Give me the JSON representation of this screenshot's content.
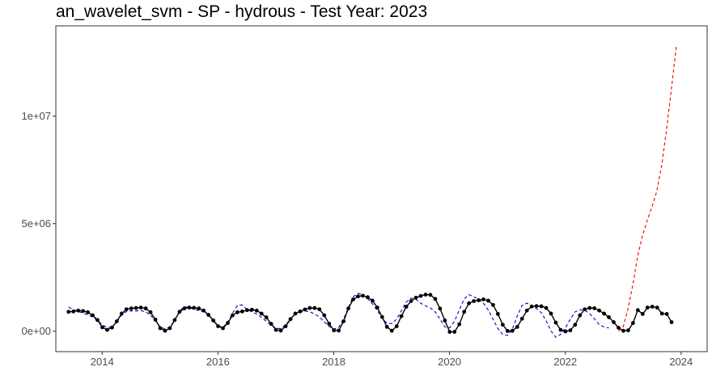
{
  "chart_data": {
    "type": "line",
    "title": "an_wavelet_svm - SP - hydrous - Test Year: 2023",
    "xlabel": "",
    "ylabel": "",
    "xlim": [
      2013.2,
      2024.45
    ],
    "ylim": [
      -950000,
      14200000
    ],
    "x_ticks": [
      2014,
      2016,
      2018,
      2020,
      2022,
      2024
    ],
    "x_tick_labels": [
      "2014",
      "2016",
      "2018",
      "2020",
      "2022",
      "2024"
    ],
    "y_ticks": [
      0,
      5000000,
      10000000
    ],
    "y_tick_labels": [
      "0e+00",
      "5e+06",
      "1e+07"
    ],
    "grid": false,
    "legend": "none",
    "series": [
      {
        "style": "solid-with-points",
        "color": "#000000",
        "x_start": 2013.42,
        "x_step": 0.08333,
        "values": [
          900000,
          920000,
          960000,
          940000,
          880000,
          740000,
          520000,
          180000,
          60000,
          170000,
          460000,
          820000,
          1020000,
          1060000,
          1080000,
          1100000,
          1060000,
          880000,
          540000,
          140000,
          20000,
          140000,
          520000,
          900000,
          1060000,
          1100000,
          1090000,
          1060000,
          960000,
          760000,
          500000,
          230000,
          140000,
          380000,
          740000,
          880000,
          920000,
          980000,
          1000000,
          960000,
          820000,
          640000,
          340000,
          60000,
          30000,
          230000,
          560000,
          820000,
          920000,
          1010000,
          1080000,
          1080000,
          1020000,
          740000,
          350000,
          40000,
          30000,
          460000,
          1060000,
          1480000,
          1620000,
          1650000,
          1580000,
          1420000,
          1100000,
          660000,
          200000,
          20000,
          230000,
          700000,
          1140000,
          1400000,
          1560000,
          1640000,
          1700000,
          1690000,
          1500000,
          1050000,
          500000,
          -30000,
          -30000,
          320000,
          900000,
          1300000,
          1400000,
          1440000,
          1480000,
          1420000,
          1220000,
          800000,
          300000,
          10000,
          20000,
          200000,
          580000,
          960000,
          1150000,
          1170000,
          1160000,
          1080000,
          820000,
          400000,
          60000,
          -10000,
          40000,
          300000,
          740000,
          1020000,
          1080000,
          1070000,
          960000,
          820000,
          650000,
          420000,
          160000,
          20000,
          40000,
          380000,
          980000,
          800000,
          1100000,
          1140000,
          1100000,
          820000,
          800000,
          420000
        ]
      },
      {
        "style": "dashed",
        "color": "#0000cc",
        "x_start": 2013.42,
        "x_step": 0.08333,
        "values": [
          1120000,
          1000000,
          920000,
          840000,
          760000,
          660000,
          500000,
          300000,
          160000,
          200000,
          420000,
          760000,
          920000,
          940000,
          940000,
          960000,
          900000,
          740000,
          480000,
          200000,
          100000,
          200000,
          500000,
          940000,
          1140000,
          1100000,
          1020000,
          960000,
          900000,
          760000,
          520000,
          260000,
          180000,
          420000,
          840000,
          1200000,
          1220000,
          1000000,
          900000,
          800000,
          640000,
          460000,
          280000,
          140000,
          120000,
          300000,
          560000,
          780000,
          880000,
          940000,
          900000,
          800000,
          660000,
          440000,
          220000,
          100000,
          180000,
          560000,
          1100000,
          1600000,
          1760000,
          1700000,
          1520000,
          1260000,
          960000,
          620000,
          360000,
          360000,
          560000,
          960000,
          1360000,
          1540000,
          1480000,
          1300000,
          1180000,
          1080000,
          900000,
          560000,
          200000,
          160000,
          460000,
          1000000,
          1500000,
          1700000,
          1600000,
          1480000,
          1300000,
          980000,
          560000,
          120000,
          -150000,
          -200000,
          100000,
          700000,
          1200000,
          1300000,
          1200000,
          1050000,
          860000,
          480000,
          10000,
          -280000,
          -150000,
          160000,
          560000,
          900000,
          1000000,
          980000,
          820000,
          580000,
          300000,
          200000,
          150000
        ]
      },
      {
        "style": "dashed",
        "color": "#ee0000",
        "x": [
          2022.92,
          2023.0,
          2023.08,
          2023.17,
          2023.25,
          2023.33,
          2023.42,
          2023.5,
          2023.58,
          2023.67,
          2023.75,
          2023.83,
          2023.92
        ],
        "values": [
          10000,
          200000,
          1000000,
          2200000,
          3500000,
          4400000,
          5200000,
          5800000,
          6500000,
          7800000,
          9400000,
          11200000,
          13300000
        ]
      }
    ]
  }
}
